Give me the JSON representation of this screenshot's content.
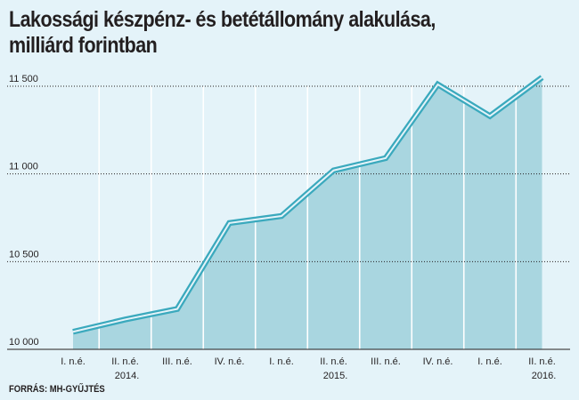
{
  "title_line1": "Lakossági készpénz- és betétállomány alakulása,",
  "title_line2": "milliárd forintban",
  "source": "FORRÁS: MH-GYŰJTÉS",
  "colors": {
    "background": "#e4f3f9",
    "area_fill": "#a9d6e0",
    "line": "#3aa9bd",
    "gridline": "#231f20",
    "vertical_gridline": "#ffffff"
  },
  "chart_data": {
    "type": "area",
    "title": "Lakossági készpénz- és betétállomány alakulása, milliárd forintban",
    "categories": [
      "I. n.é.",
      "II. n.é.",
      "III. n.é.",
      "IV. n.é.",
      "I. n.é.",
      "II. n.é.",
      "III. n.é.",
      "IV. n.é.",
      "I. n.é.",
      "II. n.é."
    ],
    "years": [
      {
        "label": "2014.",
        "under_index": 1
      },
      {
        "label": "2015.",
        "under_index": 5
      },
      {
        "label": "2016.",
        "under_index": 9
      }
    ],
    "series": [
      {
        "values": [
          10100,
          10170,
          10230,
          10720,
          10760,
          11020,
          11090,
          11510,
          11330,
          11550
        ]
      }
    ],
    "yticks": [
      {
        "value": 10000,
        "label": "10 000"
      },
      {
        "value": 10500,
        "label": "10 500"
      },
      {
        "value": 11000,
        "label": "11 000"
      },
      {
        "value": 11500,
        "label": "11 500"
      }
    ],
    "ylim": [
      10000,
      11500
    ],
    "grid": true
  }
}
